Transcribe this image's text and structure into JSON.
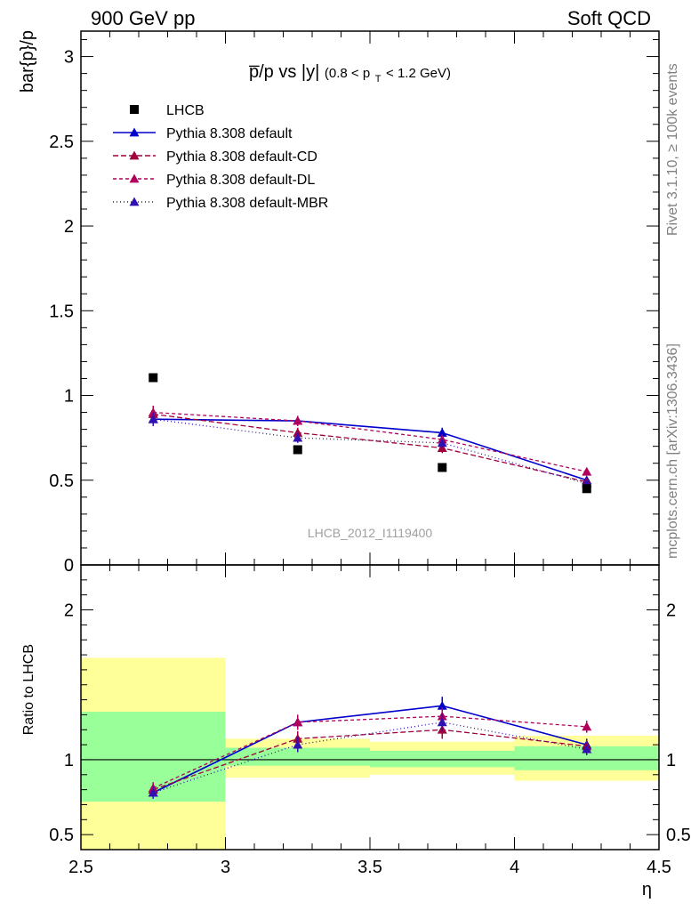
{
  "header": {
    "left": "900 GeV pp",
    "right": "Soft QCD"
  },
  "side_labels": {
    "rivet": "Rivet 3.1.10, ≥ 100k events",
    "mcplots": "mcplots.cern.ch [arXiv:1306.3436]"
  },
  "chart_data": {
    "type": "scatter",
    "title_main": "p̅/p vs |y|",
    "title_sub": "(0.8 < p",
    "title_sub_index": "T",
    "title_sub_end": " < 1.2 GeV)",
    "watermark": "LHCB_2012_I1119400",
    "xlabel": "η",
    "ylabel_top": "bar{p}/p",
    "ylabel_bottom": "Ratio to LHCB",
    "xlim": [
      2.5,
      4.5
    ],
    "top": {
      "ylim": [
        0,
        3.15
      ],
      "yticks": [
        {
          "v": 0,
          "label": "0"
        },
        {
          "v": 0.5,
          "label": "0.5"
        },
        {
          "v": 1,
          "label": "1"
        },
        {
          "v": 1.5,
          "label": "1.5"
        },
        {
          "v": 2,
          "label": "2"
        },
        {
          "v": 2.5,
          "label": "2.5"
        },
        {
          "v": 3,
          "label": "3"
        }
      ]
    },
    "bottom": {
      "ylim": [
        0.4,
        2.3
      ],
      "yticks": [
        {
          "v": 0.5,
          "label": "0.5"
        },
        {
          "v": 1,
          "label": "1"
        },
        {
          "v": 2,
          "label": "2"
        }
      ]
    },
    "xticks": [
      {
        "v": 2.5,
        "label": "2.5"
      },
      {
        "v": 3,
        "label": "3"
      },
      {
        "v": 3.5,
        "label": "3.5"
      },
      {
        "v": 4,
        "label": "4"
      },
      {
        "v": 4.5,
        "label": "4.5"
      }
    ],
    "x": [
      2.75,
      3.25,
      3.75,
      4.25
    ],
    "data": {
      "name": "LHCB",
      "values": [
        1.105,
        0.68,
        0.575,
        0.45
      ],
      "bins": [
        [
          2.5,
          3.0
        ],
        [
          3.0,
          3.5
        ],
        [
          3.5,
          4.0
        ],
        [
          4.0,
          4.5
        ]
      ],
      "band_stat": [
        [
          0.72,
          1.32
        ],
        [
          0.96,
          1.08
        ],
        [
          0.95,
          1.06
        ],
        [
          0.93,
          1.09
        ]
      ],
      "band_total": [
        [
          0.4,
          1.68
        ],
        [
          0.88,
          1.14
        ],
        [
          0.9,
          1.12
        ],
        [
          0.86,
          1.16
        ]
      ]
    },
    "series": [
      {
        "name": "Pythia 8.308 default",
        "color": "#0000cc",
        "dash": "",
        "values": [
          0.86,
          0.85,
          0.78,
          0.5
        ],
        "err": [
          0.04,
          0.03,
          0.03,
          0.02
        ],
        "ratio": [
          0.78,
          1.25,
          1.36,
          1.1
        ],
        "ratio_err": [
          0.04,
          0.05,
          0.06,
          0.04
        ]
      },
      {
        "name": "Pythia 8.308 default-CD",
        "color": "#a0003c",
        "dash": "6,3",
        "values": [
          0.89,
          0.78,
          0.69,
          0.49
        ],
        "err": [
          0.04,
          0.03,
          0.03,
          0.02
        ],
        "ratio": [
          0.8,
          1.14,
          1.2,
          1.09
        ],
        "ratio_err": [
          0.04,
          0.05,
          0.06,
          0.04
        ]
      },
      {
        "name": "Pythia 8.308 default-DL",
        "color": "#b0005c",
        "dash": "4,3",
        "values": [
          0.9,
          0.85,
          0.74,
          0.55
        ],
        "err": [
          0.04,
          0.03,
          0.03,
          0.02
        ],
        "ratio": [
          0.81,
          1.25,
          1.29,
          1.22
        ],
        "ratio_err": [
          0.04,
          0.05,
          0.06,
          0.04
        ]
      },
      {
        "name": "Pythia 8.308 default-MBR",
        "color": "#3010b0",
        "dash": "1,3",
        "values": [
          0.86,
          0.75,
          0.72,
          0.48
        ],
        "err": [
          0.04,
          0.03,
          0.03,
          0.02
        ],
        "ratio": [
          0.78,
          1.1,
          1.25,
          1.07
        ],
        "ratio_err": [
          0.04,
          0.05,
          0.06,
          0.04
        ]
      }
    ],
    "band_colors": {
      "total": "#ffff99",
      "stat": "#99ff99"
    }
  }
}
